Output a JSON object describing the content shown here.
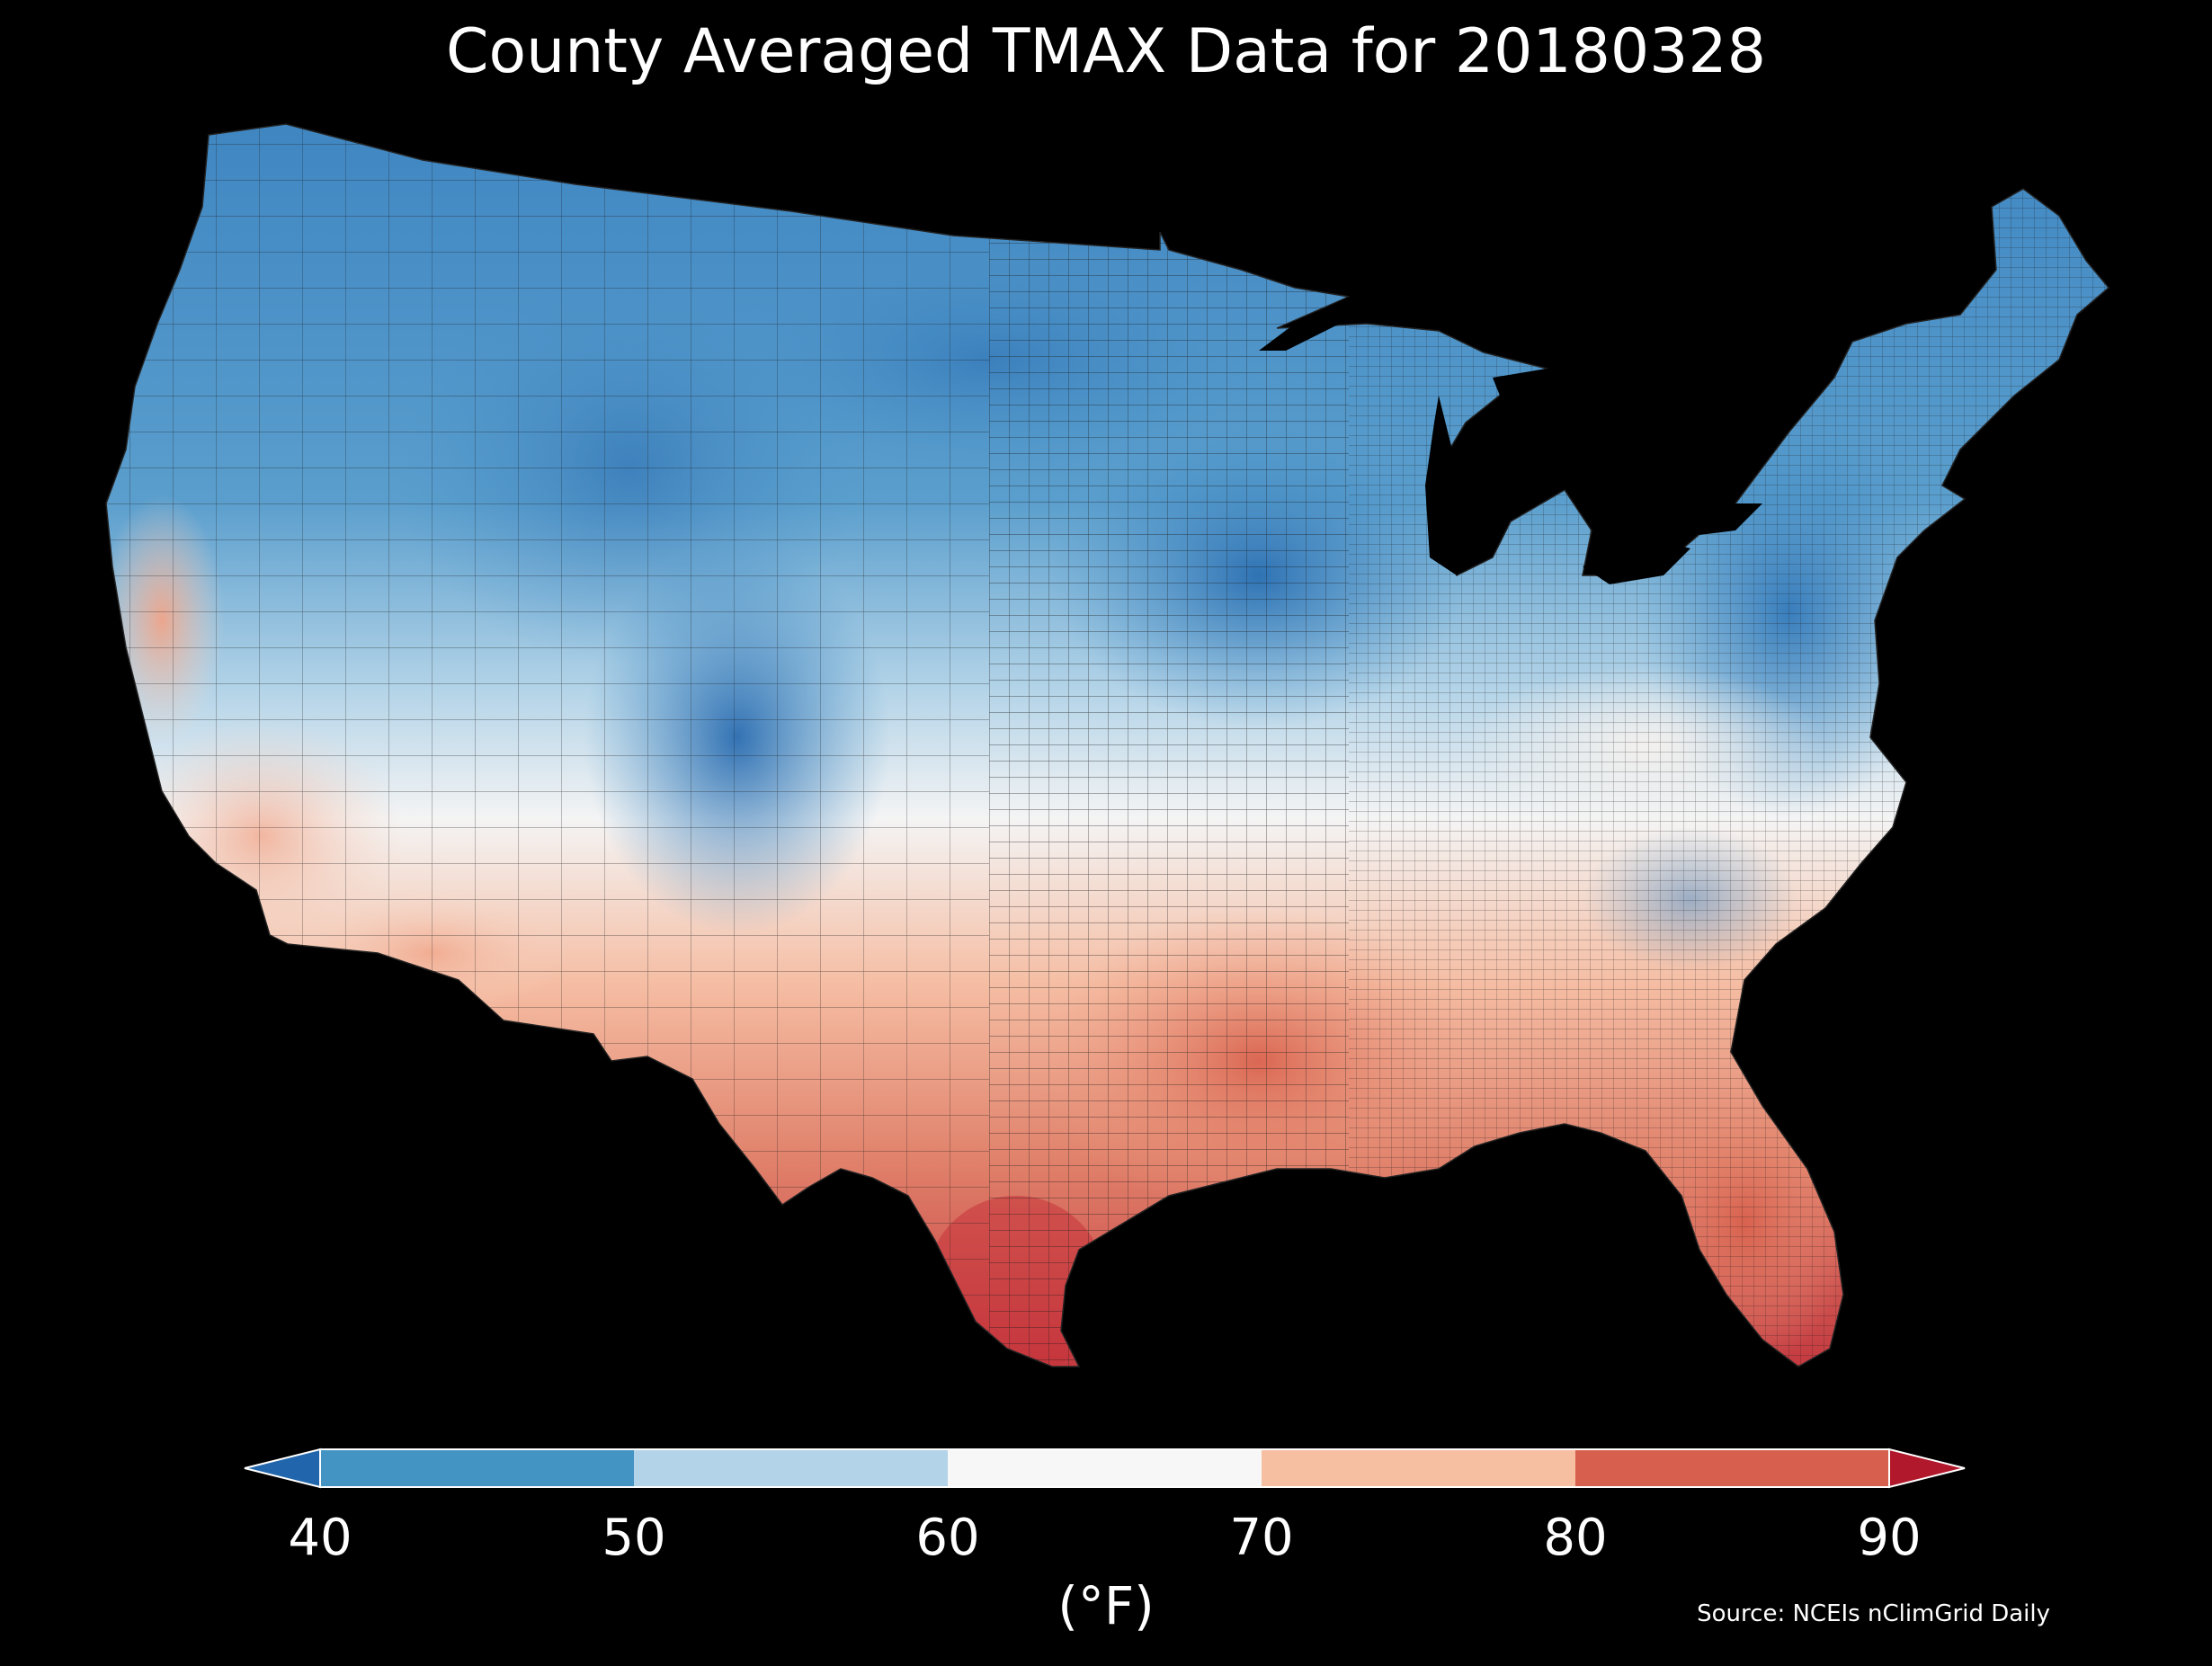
{
  "title": "County Averaged TMAX Data for 20180328",
  "colorbar": {
    "ticks": [
      "40",
      "50",
      "60",
      "70",
      "80",
      "90"
    ],
    "tick_values": [
      40,
      50,
      60,
      70,
      80,
      90
    ],
    "units": "(°F)",
    "colors": {
      "below_40": "#2166ac",
      "40_50": "#4393c3",
      "50_60": "#b2d3e8",
      "60_70": "#f7f7f7",
      "70_80": "#f7bfa2",
      "80_90": "#d6604d",
      "above_90": "#b2182b"
    }
  },
  "source": "Source: NCEIs nClimGrid Daily",
  "map": {
    "region": "contiguous-united-states",
    "pattern": "cool-north-warm-south"
  }
}
